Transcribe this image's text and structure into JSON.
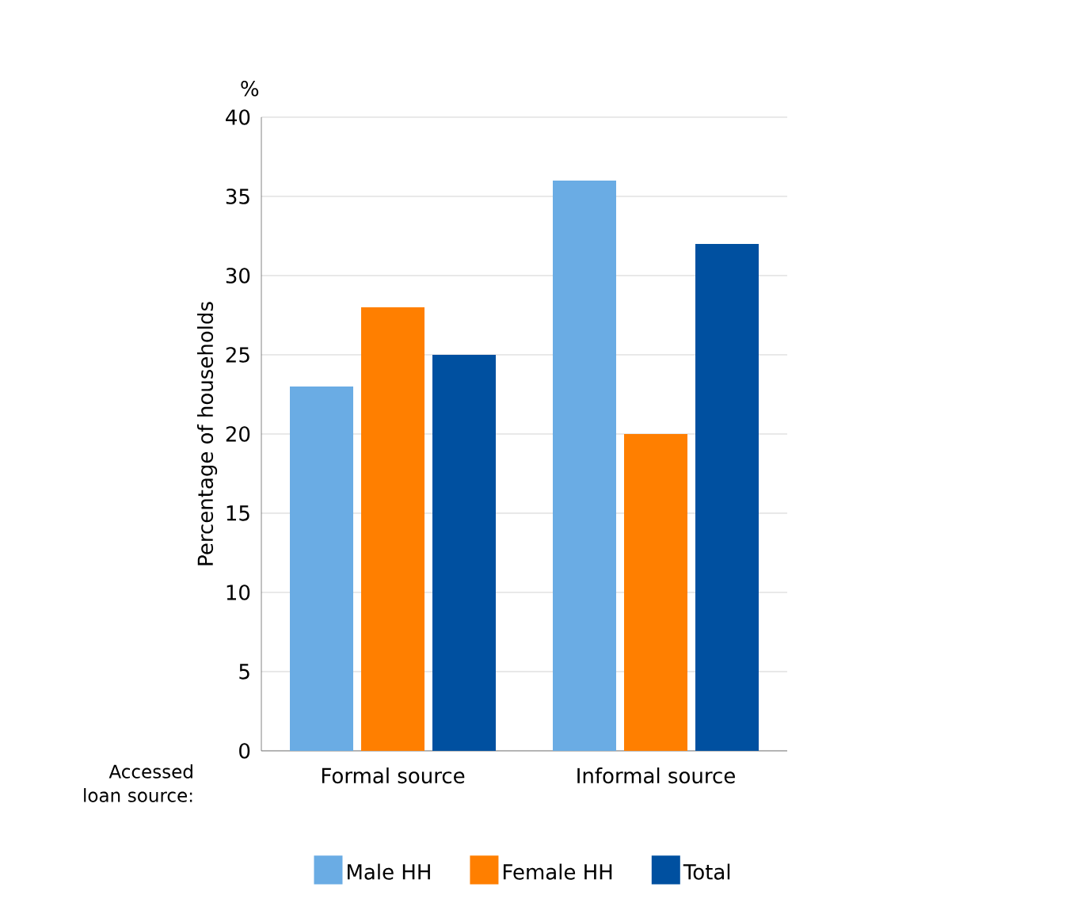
{
  "chart_data": {
    "type": "bar",
    "ylabel": "Percentage of households",
    "xlabel": "Accessed loan source:",
    "annotations": [
      "%"
    ],
    "categories": [
      "Formal source",
      "Informal source"
    ],
    "series": [
      {
        "name": "Male HH",
        "color": "#6aace4",
        "values": [
          23,
          36
        ]
      },
      {
        "name": "Female HH",
        "color": "#ff7f00",
        "values": [
          28,
          20
        ]
      },
      {
        "name": "Total",
        "color": "#0050a0",
        "values": [
          25,
          32
        ]
      }
    ],
    "ylim": [
      0,
      40
    ],
    "yticks": [
      0,
      5,
      10,
      15,
      20,
      25,
      30,
      35,
      40
    ],
    "grid": "y",
    "legend": "bottom"
  }
}
